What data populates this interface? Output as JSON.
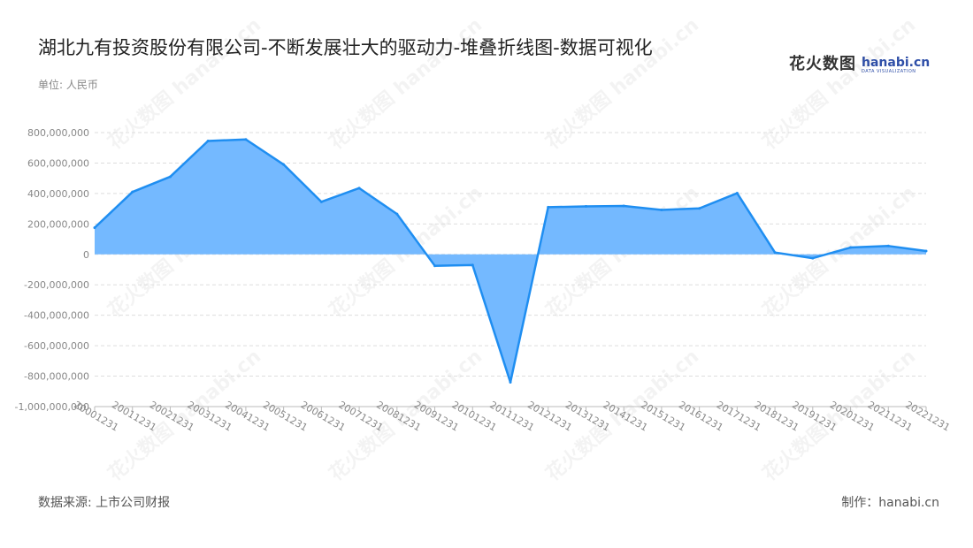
{
  "header": {
    "title": "湖北九有投资股份有限公司-不断发展壮大的驱动力-堆叠折线图-数据可视化",
    "unit": "单位: 人民币"
  },
  "logo": {
    "cn_text": "花火数图",
    "en_text": "hanabi.cn",
    "tagline": "DATA VISUALIZATION"
  },
  "footer": {
    "source": "数据来源: 上市公司财报",
    "maker": "制作：hanabi.cn"
  },
  "watermark_text": "花火数图 hanabi.cn",
  "colors": {
    "line": "#1f8ef1",
    "fill": "#74b9ff",
    "grid": "#dddddd",
    "axis": "#bbbbbb"
  },
  "chart_data": {
    "type": "area",
    "categories": [
      "20001231",
      "20011231",
      "20021231",
      "20031231",
      "20041231",
      "20051231",
      "20061231",
      "20071231",
      "20081231",
      "20091231",
      "20101231",
      "20111231",
      "20121231",
      "20131231",
      "20141231",
      "20151231",
      "20161231",
      "20171231",
      "20181231",
      "20191231",
      "20201231",
      "20211231",
      "20221231"
    ],
    "series": [
      {
        "values": [
          175000000,
          410000000,
          510000000,
          745000000,
          755000000,
          590000000,
          345000000,
          435000000,
          265000000,
          -75000000,
          -70000000,
          -840000000,
          310000000,
          315000000,
          318000000,
          292000000,
          302000000,
          402000000,
          12000000,
          -25000000,
          45000000,
          55000000,
          22000000
        ]
      }
    ],
    "y_ticks": [
      "800,000,000",
      "600,000,000",
      "400,000,000",
      "200,000,000",
      "0",
      "-200,000,000",
      "-400,000,000",
      "-600,000,000",
      "-800,000,000",
      "-1,000,000,000"
    ],
    "ylim": [
      -1000000000,
      800000000
    ],
    "grid": true,
    "xlabel": "",
    "ylabel": ""
  }
}
